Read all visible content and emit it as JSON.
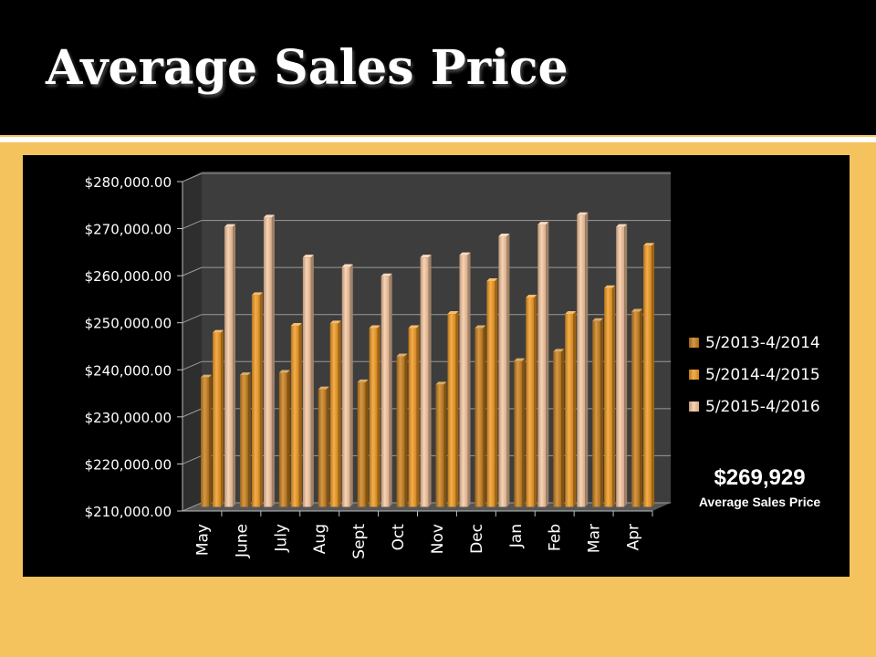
{
  "title": "Average Sales Price",
  "summary": {
    "value": "$269,929",
    "label": "Average Sales Price"
  },
  "chart_data": {
    "type": "bar",
    "style": "3d-clustered-column",
    "title": "",
    "xlabel": "",
    "ylabel": "",
    "ylim": [
      210000,
      280000
    ],
    "yticks": [
      210000,
      220000,
      230000,
      240000,
      250000,
      260000,
      270000,
      280000
    ],
    "ytick_labels": [
      "$210,000.00",
      "$220,000.00",
      "$230,000.00",
      "$240,000.00",
      "$250,000.00",
      "$260,000.00",
      "$270,000.00",
      "$280,000.00"
    ],
    "grid": true,
    "legend_position": "right",
    "categories": [
      "May",
      "June",
      "July",
      "Aug",
      "Sept",
      "Oct",
      "Nov",
      "Dec",
      "Jan",
      "Feb",
      "Mar",
      "Apr"
    ],
    "series": [
      {
        "name": "5/2013-4/2014",
        "color": "#c97f1a",
        "values": [
          237500,
          238000,
          238500,
          235000,
          236500,
          242000,
          236000,
          248000,
          241000,
          243000,
          249500,
          251500
        ]
      },
      {
        "name": "5/2014-4/2015",
        "color": "#f29a20",
        "values": [
          247000,
          255000,
          248500,
          249000,
          248000,
          248000,
          251000,
          258000,
          254500,
          251000,
          256500,
          265500
        ]
      },
      {
        "name": "5/2015-4/2016",
        "color": "#f8c8a0",
        "values": [
          269500,
          271500,
          263000,
          261000,
          259000,
          263000,
          263500,
          267500,
          270000,
          272000,
          269500,
          null
        ]
      }
    ]
  }
}
